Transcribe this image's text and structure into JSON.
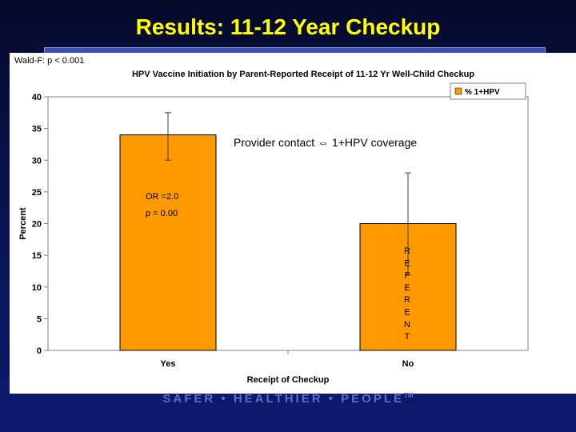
{
  "slide": {
    "title": "Results: 11-12 Year Checkup",
    "footer": "SAFER • HEALTHIER • PEOPLE",
    "footer_mark": "TM"
  },
  "stats": {
    "wald": "Wald-F: p < 0.001"
  },
  "annotations": {
    "provider": "Provider contact ⇔ 1+HPV coverage",
    "or_value": "OR =2.0",
    "p_value": "p = 0.00",
    "referent": [
      "R",
      "E",
      "F",
      "E",
      "R",
      "E",
      "N",
      "T"
    ]
  },
  "chart_data": {
    "type": "bar",
    "title": "HPV Vaccine Initiation by Parent-Reported Receipt of 11-12 Yr Well-Child Checkup",
    "xlabel": "Receipt of Checkup",
    "ylabel": "Percent",
    "categories": [
      "Yes",
      "No"
    ],
    "series": [
      {
        "name": "% 1+HPV",
        "values": [
          34,
          20
        ],
        "error_low": [
          30,
          12
        ],
        "error_high": [
          37.5,
          28
        ]
      }
    ],
    "ylim": [
      0,
      40
    ],
    "yticks": [
      "0",
      "5",
      "10",
      "15",
      "20",
      "25",
      "30",
      "35",
      "40"
    ],
    "grid": false,
    "legend": "top-right",
    "colors": {
      "bar": "#ff9900",
      "bar_border": "#000000",
      "axis": "#808080",
      "error": "#404040"
    }
  }
}
